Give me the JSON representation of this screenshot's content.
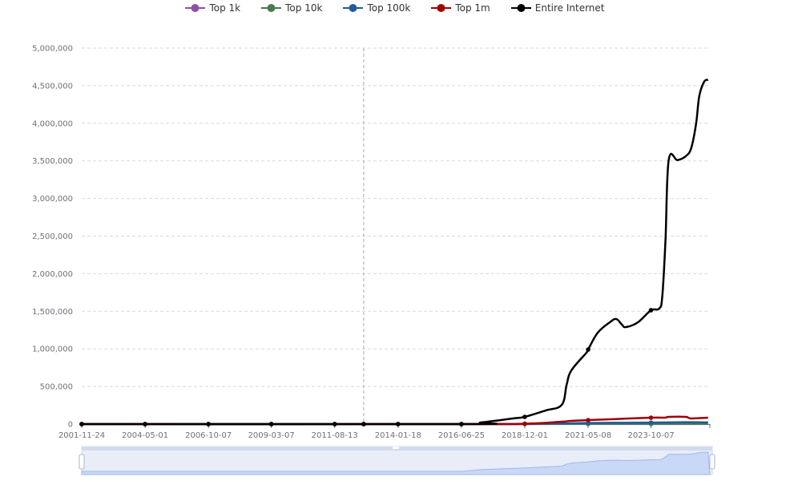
{
  "chart_data": {
    "type": "line",
    "title": "",
    "xlabel": "",
    "ylabel": "",
    "ylim": [
      0,
      5000000
    ],
    "yticks": [
      0,
      500000,
      1000000,
      1500000,
      2000000,
      2500000,
      3000000,
      3500000,
      4000000,
      4500000,
      5000000
    ],
    "ytick_labels": [
      "0",
      "500,000",
      "1,000,000",
      "1,500,000",
      "2,000,000",
      "2,500,000",
      "3,000,000",
      "3,500,000",
      "4,000,000",
      "4,500,000",
      "5,000,000"
    ],
    "xlim": [
      "2001-11-24",
      "2026-01-10"
    ],
    "xtick_labels": [
      "2001-11-24",
      "2004-05-01",
      "2006-10-07",
      "2009-03-07",
      "2011-08-13",
      "2014-01-18",
      "2016-06-25",
      "2018-12-01",
      "2021-05-08",
      "2023-10-07"
    ],
    "grid": "horizontal dashed",
    "legend_position": "top",
    "axis_pointer_date": "2012-09-23",
    "series": [
      {
        "name": "Top 1k",
        "color": "#8e4fa8",
        "points": [
          [
            "2001-11-24",
            0
          ],
          [
            "2016-06-25",
            0
          ],
          [
            "2018-12-01",
            500
          ],
          [
            "2021-05-08",
            1000
          ],
          [
            "2023-10-07",
            1200
          ],
          [
            "2025-12-16",
            1300
          ]
        ]
      },
      {
        "name": "Top 10k",
        "color": "#4a7a4f",
        "points": [
          [
            "2001-11-24",
            0
          ],
          [
            "2016-06-25",
            0
          ],
          [
            "2018-12-01",
            1500
          ],
          [
            "2021-05-08",
            3000
          ],
          [
            "2023-10-07",
            3500
          ],
          [
            "2025-12-16",
            4000
          ]
        ]
      },
      {
        "name": "Top 100k",
        "color": "#1f5c99",
        "points": [
          [
            "2001-11-24",
            0
          ],
          [
            "2016-06-25",
            0
          ],
          [
            "2018-12-01",
            3000
          ],
          [
            "2020-05-03",
            8000
          ],
          [
            "2021-05-08",
            15000
          ],
          [
            "2023-10-07",
            20000
          ],
          [
            "2025-02-03",
            25000
          ],
          [
            "2025-12-16",
            22000
          ]
        ]
      },
      {
        "name": "Top 1m",
        "color": "#a00000",
        "points": [
          [
            "2001-11-24",
            0
          ],
          [
            "2016-06-25",
            0
          ],
          [
            "2018-12-01",
            5000
          ],
          [
            "2020-05-03",
            32000
          ],
          [
            "2020-09-15",
            43000
          ],
          [
            "2021-05-08",
            53000
          ],
          [
            "2022-03-09",
            64000
          ],
          [
            "2023-10-07",
            85000
          ],
          [
            "2024-04-27",
            86000
          ],
          [
            "2024-06-11",
            96000
          ],
          [
            "2025-02-03",
            96000
          ],
          [
            "2025-04-23",
            75000
          ],
          [
            "2025-12-16",
            85000
          ]
        ]
      },
      {
        "name": "Entire Internet",
        "color": "#000000",
        "points": [
          [
            "2001-11-24",
            0
          ],
          [
            "2016-06-25",
            0
          ],
          [
            "2017-03-23",
            21000
          ],
          [
            "2018-06-16",
            75000
          ],
          [
            "2018-12-01",
            96000
          ],
          [
            "2019-09-20",
            181000
          ],
          [
            "2020-05-03",
            256000
          ],
          [
            "2020-07-10",
            522000
          ],
          [
            "2020-09-15",
            714000
          ],
          [
            "2021-04-14",
            949000
          ],
          [
            "2021-05-08",
            991000
          ],
          [
            "2021-09-20",
            1215000
          ],
          [
            "2022-03-09",
            1354000
          ],
          [
            "2022-06-07",
            1397000
          ],
          [
            "2022-08-25",
            1322000
          ],
          [
            "2022-10-20",
            1290000
          ],
          [
            "2023-04-07",
            1354000
          ],
          [
            "2023-10-07",
            1514000
          ],
          [
            "2024-01-28",
            1535000
          ],
          [
            "2024-03-13",
            1695000
          ],
          [
            "2024-04-27",
            2440000
          ],
          [
            "2024-06-11",
            3510000
          ],
          [
            "2024-10-13",
            3510000
          ],
          [
            "2025-02-03",
            3560000
          ],
          [
            "2025-04-23",
            3670000
          ],
          [
            "2025-06-30",
            3990000
          ],
          [
            "2025-08-14",
            4360000
          ],
          [
            "2025-10-20",
            4550000
          ],
          [
            "2025-12-16",
            4580000
          ]
        ]
      }
    ]
  }
}
